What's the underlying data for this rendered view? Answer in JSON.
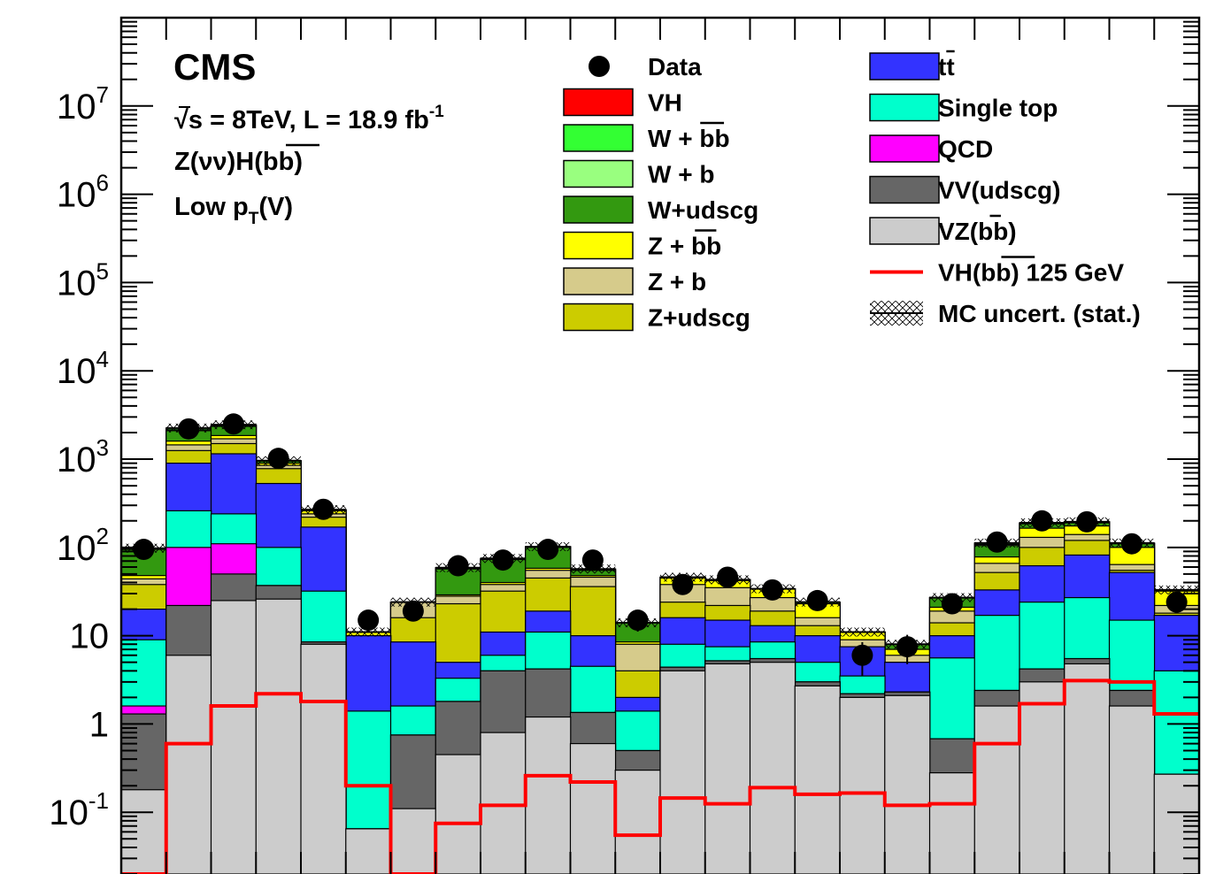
{
  "labels": {
    "experiment": "CMS",
    "energy_lumi": "√s =  8TeV, L = 18.9 fb",
    "energy_lumi_sup": "-1",
    "channel": "Z(νν)H(bb)",
    "boost_region": "Low p",
    "boost_region_sub": "T",
    "boost_region_tail": "(V)"
  },
  "legend_left": [
    {
      "label": "Data",
      "kind": "marker",
      "color": "#000000"
    },
    {
      "label": "VH",
      "kind": "box",
      "color": "#ff0000"
    },
    {
      "label": "W + bb",
      "kind": "box",
      "color": "#33ff33"
    },
    {
      "label": "W + b",
      "kind": "box",
      "color": "#99ff7f"
    },
    {
      "label": "W+udscg",
      "kind": "box",
      "color": "#339910"
    },
    {
      "label": "Z + bb",
      "kind": "box",
      "color": "#ffff00"
    },
    {
      "label": "Z + b",
      "kind": "box",
      "color": "#d6cb8b"
    },
    {
      "label": "Z+udscg",
      "kind": "box",
      "color": "#cccc00"
    }
  ],
  "legend_right": [
    {
      "label": "tt",
      "kind": "box",
      "color": "#3333ff"
    },
    {
      "label": "Single top",
      "kind": "box",
      "color": "#00ffcc"
    },
    {
      "label": "QCD",
      "kind": "box",
      "color": "#ff00ff"
    },
    {
      "label": "VV(udscg)",
      "kind": "box",
      "color": "#666666"
    },
    {
      "label": "VZ(bb)",
      "kind": "box",
      "color": "#cccccc"
    },
    {
      "label": "VH(bb) 125 GeV",
      "kind": "line",
      "color": "#ff0000"
    },
    {
      "label": "MC uncert. (stat.)",
      "kind": "hatch",
      "color": "#000000"
    }
  ],
  "chart_data": {
    "type": "bar",
    "stacked": true,
    "log_y": true,
    "ylim": [
      0.02,
      100000000
    ],
    "y_tick_labels": [
      {
        "value": 0.1,
        "base": "10",
        "exp": "-1"
      },
      {
        "value": 1,
        "base": "1",
        "exp": ""
      },
      {
        "value": 10,
        "base": "10",
        "exp": ""
      },
      {
        "value": 100,
        "base": "10",
        "exp": "2"
      },
      {
        "value": 1000,
        "base": "10",
        "exp": "3"
      },
      {
        "value": 10000,
        "base": "10",
        "exp": "4"
      },
      {
        "value": 100000,
        "base": "10",
        "exp": "5"
      },
      {
        "value": 1000000,
        "base": "10",
        "exp": "6"
      },
      {
        "value": 10000000,
        "base": "10",
        "exp": "7"
      }
    ],
    "n_bins": 24,
    "xlabel": "",
    "ylabel": "",
    "stack_order_bottom_to_top": [
      "VZ(bb)",
      "VV(udscg)",
      "QCD",
      "Single top",
      "tt",
      "Z+udscg",
      "Z + b",
      "Z + bb",
      "W+udscg",
      "W + b",
      "W + bb",
      "VH"
    ],
    "stack_cumulative": [
      {
        "name": "VZ(bb)",
        "values": [
          0.18,
          6,
          25,
          26,
          8,
          0.065,
          0.11,
          0.45,
          0.8,
          1.2,
          0.6,
          0.3,
          4,
          4.8,
          5,
          2.7,
          2,
          2.1,
          0.28,
          1.6,
          3,
          4.8,
          1.6,
          0.27
        ]
      },
      {
        "name": "VV(udscg)",
        "values": [
          1.3,
          22,
          50,
          37,
          8.5,
          0.065,
          0.75,
          1.8,
          4,
          4.2,
          1.35,
          0.5,
          4.4,
          5.2,
          5.5,
          3,
          2.2,
          2.3,
          0.68,
          2.4,
          4.2,
          5.5,
          2.4,
          0.27
        ]
      },
      {
        "name": "QCD",
        "values": [
          1.6,
          100,
          110,
          37,
          8.5,
          0.065,
          0.75,
          1.8,
          4,
          4.2,
          1.35,
          0.5,
          4.4,
          5.2,
          5.5,
          3,
          2.2,
          2.3,
          0.68,
          2.4,
          4.2,
          5.5,
          2.4,
          0.27
        ]
      },
      {
        "name": "Single top",
        "values": [
          9,
          260,
          240,
          100,
          32,
          1.4,
          1.6,
          3.3,
          6,
          11,
          4.5,
          1.4,
          8,
          7.5,
          8.5,
          5,
          3.5,
          2.3,
          5.6,
          17,
          24,
          27,
          15,
          4
        ]
      },
      {
        "name": "tt",
        "values": [
          20,
          900,
          1150,
          530,
          170,
          10,
          8.5,
          5,
          11,
          19,
          10,
          2,
          16,
          15,
          13,
          10,
          7.5,
          5,
          10,
          33,
          62,
          82,
          52,
          17
        ]
      },
      {
        "name": "Z+udscg",
        "values": [
          38,
          1250,
          1500,
          780,
          220,
          10,
          16,
          23,
          32,
          45,
          36,
          4,
          24,
          22,
          19,
          13,
          7.5,
          5,
          14,
          52,
          100,
          120,
          55,
          18
        ]
      },
      {
        "name": "Z + b",
        "values": [
          44,
          1450,
          1700,
          850,
          240,
          10,
          24,
          28,
          38,
          55,
          46,
          8,
          38,
          35,
          27,
          16,
          9,
          6,
          19,
          66,
          130,
          140,
          64,
          22
        ]
      },
      {
        "name": "Z + bb",
        "values": [
          48,
          1600,
          1850,
          900,
          260,
          11,
          24,
          29,
          40,
          58,
          48,
          8.5,
          45,
          42,
          34,
          23,
          11,
          7,
          21,
          78,
          165,
          175,
          100,
          32
        ]
      },
      {
        "name": "W+udscg",
        "values": [
          95,
          2100,
          2350,
          950,
          265,
          11,
          24,
          57,
          73,
          100,
          55,
          14,
          46,
          43,
          34,
          24,
          11,
          8,
          27,
          105,
          185,
          190,
          110,
          33
        ]
      },
      {
        "name": "W + b",
        "values": [
          96,
          2150,
          2400,
          955,
          266,
          11,
          24,
          58,
          74,
          101,
          56,
          14,
          46,
          43,
          34,
          24,
          11,
          8,
          27,
          108,
          187,
          192,
          111,
          33
        ]
      },
      {
        "name": "W + bb",
        "values": [
          98,
          2250,
          2450,
          960,
          268,
          11,
          24,
          59,
          75,
          102,
          57,
          14,
          46,
          43,
          34,
          24,
          11,
          8,
          27,
          112,
          190,
          195,
          112,
          33
        ]
      },
      {
        "name": "VH",
        "values": [
          98,
          2250,
          2450,
          960,
          268,
          11,
          24,
          59,
          75,
          102,
          57,
          14,
          46,
          43,
          34,
          24,
          11,
          8,
          27,
          112,
          190,
          195,
          112,
          33
        ]
      }
    ],
    "signal_line": {
      "name": "VH(bb) 125 GeV",
      "values": [
        0.01,
        0.6,
        1.6,
        2.2,
        1.8,
        0.2,
        0.01,
        0.075,
        0.12,
        0.26,
        0.22,
        0.055,
        0.145,
        0.125,
        0.19,
        0.16,
        0.165,
        0.12,
        0.125,
        0.6,
        1.7,
        3.1,
        3,
        1.3
      ]
    },
    "data_points": {
      "name": "Data",
      "values": [
        95,
        2200,
        2500,
        1020,
        270,
        15,
        19,
        62,
        72,
        95,
        72,
        15,
        38,
        46,
        33,
        25,
        6,
        7.5,
        23,
        115,
        200,
        195,
        110,
        24
      ]
    }
  }
}
